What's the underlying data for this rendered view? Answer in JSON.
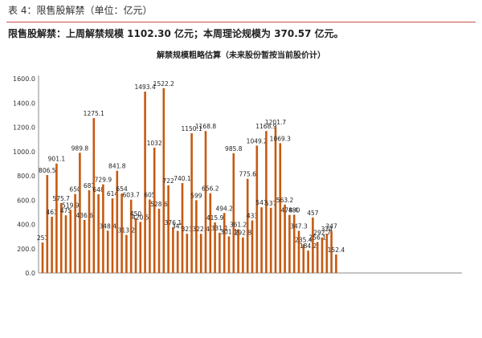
{
  "header": {
    "table_caption": "表 4：限售股解禁（单位：亿元）",
    "summary": "限售股解禁：上周解禁规模 1102.30 亿元；本周理论规模为 370.57 亿元。"
  },
  "colors": {
    "bar": "#c55a11",
    "rule": "#c8504b",
    "axis": "#888888",
    "label": "#333333"
  },
  "chart_data": {
    "type": "bar",
    "title": "解禁规模粗略估算（未来股份暂按当前股价计）",
    "ylim": [
      0,
      1600
    ],
    "yticks": [
      "0.0",
      "200.0",
      "400.0",
      "600.0",
      "800.0",
      "1000.0",
      "1200.0",
      "1400.0",
      "1600.0"
    ],
    "grid": false,
    "values": [
      251.0,
      806.5,
      463,
      901.1,
      575.7,
      475,
      519.9,
      650.0,
      989.8,
      436.6,
      681,
      1275.1,
      648.0,
      729.9,
      348.4,
      614,
      841.8,
      654,
      313.2,
      603.7,
      450,
      420.5,
      1493.4,
      605.0,
      1032.0,
      528.6,
      1522.2,
      722.0,
      376.1,
      347,
      740.1,
      323,
      1150.1,
      599.0,
      322.4,
      1168.8,
      656.2,
      415.9,
      331.1,
      494.2,
      301.1,
      985.8,
      361.2,
      292.8,
      775.6,
      433.0,
      1049.2,
      541,
      1168.9,
      537,
      1201.7,
      1069.3,
      563.2,
      478.4,
      480.0,
      347.3,
      235.4,
      184.2,
      457.0,
      256.1,
      292.7,
      324,
      347.0,
      152.4
    ]
  }
}
